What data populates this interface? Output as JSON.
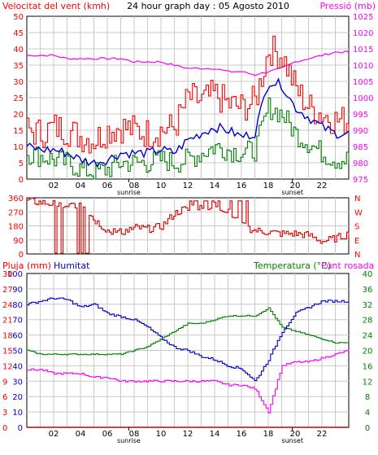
{
  "colors": {
    "wind_speed": "#ff0000",
    "wind_gust": "#ff0000",
    "wind_avg": "#0000cc",
    "wind_min": "#008000",
    "pressure": "#ff00ff",
    "wind_dir": "#dd0000",
    "rain": "#cc0000",
    "humidity": "#0000cc",
    "temperature": "#008000",
    "dew_point": "#ff00ff",
    "grid": "#c8c8c8",
    "frame": "#000000",
    "label_red": "#ff0000",
    "label_pink": "#ff00ff",
    "label_blue": "#0000cc",
    "label_green": "#008000"
  },
  "header": {
    "wind_title": "Velocitat del vent (kmh)",
    "graph_title": "24 hour graph day : 05 Agosto 2010",
    "pressure_title": "Pressió (mb)"
  },
  "lower_header": {
    "rain_title": "Pluja (mm)",
    "humidity_title": "Humitat",
    "temperature_title": "Temperatura (°C)",
    "dewpoint_title": "Punt rosada"
  },
  "x_axis": {
    "tick_labels": [
      "02",
      "04",
      "06",
      "08",
      "10",
      "12",
      "14",
      "16",
      "18",
      "20",
      "22"
    ],
    "sunrise_label": "sunrise",
    "sunset_label": "sunset"
  },
  "chart_data": [
    {
      "type": "line",
      "title": "Velocitat del vent (kmh)",
      "y_left_label": "Velocitat del vent (kmh)",
      "y_right_label": "Pressió (mb)",
      "ylim_left": [
        0,
        50
      ],
      "ylim_right": [
        975,
        1025
      ],
      "y_left_ticks": [
        "0",
        "5",
        "10",
        "15",
        "20",
        "25",
        "30",
        "35",
        "40",
        "45",
        "50"
      ],
      "y_right_ticks": [
        "975",
        "980",
        "985",
        "990",
        "995",
        "1000",
        "1005",
        "1010",
        "1015",
        "1020",
        "1025"
      ],
      "x_hours": [
        0,
        1,
        2,
        3,
        4,
        5,
        6,
        7,
        8,
        9,
        10,
        11,
        12,
        13,
        14,
        15,
        16,
        17,
        18,
        19,
        20,
        21,
        22,
        23,
        24
      ],
      "series": [
        {
          "values": [
            15,
            14,
            16,
            15,
            13,
            12,
            15,
            16,
            15,
            14,
            15,
            16,
            25,
            24,
            26,
            23,
            22,
            24,
            40,
            38,
            28,
            22,
            20,
            18,
            18
          ]
        },
        {
          "values": [
            10,
            9,
            9,
            8,
            6,
            5,
            6,
            8,
            8,
            8,
            9,
            8,
            12,
            14,
            16,
            15,
            13,
            14,
            30,
            29,
            22,
            19,
            16,
            14,
            14
          ]
        },
        {
          "values": [
            8,
            7,
            6,
            5,
            3,
            2,
            3,
            5,
            5,
            5,
            6,
            5,
            6,
            8,
            10,
            9,
            8,
            9,
            22,
            20,
            14,
            11,
            8,
            6,
            6
          ]
        },
        {
          "values": [
            1013,
            1013,
            1013,
            1012,
            1012,
            1012,
            1012,
            1012,
            1011,
            1011,
            1011,
            1010,
            1009,
            1009,
            1009,
            1008,
            1008,
            1007,
            1008,
            1009,
            1011,
            1012,
            1013,
            1014,
            1014
          ]
        }
      ]
    },
    {
      "type": "line",
      "title": "",
      "y_right_label": "N W S E N",
      "ylim": [
        0,
        360
      ],
      "y_left_ticks": [
        "0",
        "90",
        "180",
        "270",
        "360"
      ],
      "y_right_ticks": [
        "N",
        "E",
        "S",
        "W",
        "N"
      ],
      "x_hours": [
        0,
        1,
        2,
        3,
        4,
        5,
        6,
        7,
        8,
        9,
        10,
        11,
        12,
        13,
        14,
        15,
        16,
        17,
        18,
        19,
        20,
        21,
        22,
        23,
        24
      ],
      "series": [
        {
          "values": [
            340,
            330,
            320,
            300,
            330,
            220,
            150,
            140,
            170,
            160,
            175,
            260,
            300,
            290,
            310,
            280,
            180,
            150,
            140,
            130,
            130,
            120,
            80,
            100,
            130
          ]
        }
      ]
    },
    {
      "type": "line",
      "title": "",
      "y_left_label": "Pluja (mm) / Humitat",
      "y_right_label": "Temperatura (°C) / Punt rosada",
      "ylim_left": [
        0,
        100
      ],
      "ylim_right": [
        0,
        40
      ],
      "y_left_ticks_rain": [
        "0",
        "3",
        "6",
        "9",
        "12",
        "15",
        "18",
        "21",
        "24",
        "27",
        "30"
      ],
      "y_left_ticks_humidity": [
        "0",
        "10",
        "20",
        "30",
        "40",
        "50",
        "60",
        "70",
        "80",
        "90",
        "100"
      ],
      "y_right_ticks": [
        "0",
        "4",
        "8",
        "12",
        "16",
        "20",
        "24",
        "28",
        "32",
        "36",
        "40"
      ],
      "x_hours": [
        0,
        1,
        2,
        3,
        4,
        5,
        6,
        7,
        8,
        9,
        10,
        11,
        12,
        13,
        14,
        15,
        16,
        17,
        18,
        19,
        20,
        21,
        22,
        23,
        24
      ],
      "series": [
        {
          "values": [
            0,
            0,
            0,
            0,
            0,
            0,
            0,
            0,
            0,
            0,
            0,
            0,
            0,
            0,
            0,
            0,
            0,
            0,
            0,
            0,
            0,
            0,
            0,
            0,
            0
          ]
        },
        {
          "values": [
            80,
            82,
            84,
            83,
            78,
            80,
            74,
            72,
            70,
            65,
            58,
            52,
            50,
            46,
            44,
            40,
            38,
            30,
            44,
            62,
            74,
            78,
            82,
            82,
            82
          ]
        },
        {
          "values": [
            20,
            19,
            19,
            19,
            19,
            19,
            19,
            19,
            20,
            21,
            23,
            25,
            27,
            27,
            28,
            29,
            29,
            29,
            31,
            26,
            25,
            24,
            23,
            22,
            22
          ]
        },
        {
          "values": [
            15,
            15,
            14,
            14,
            14,
            13,
            13,
            12,
            12,
            12,
            12,
            12,
            12,
            12,
            12,
            11,
            11,
            10,
            4,
            16,
            17,
            17,
            18,
            19,
            20
          ]
        }
      ]
    }
  ]
}
